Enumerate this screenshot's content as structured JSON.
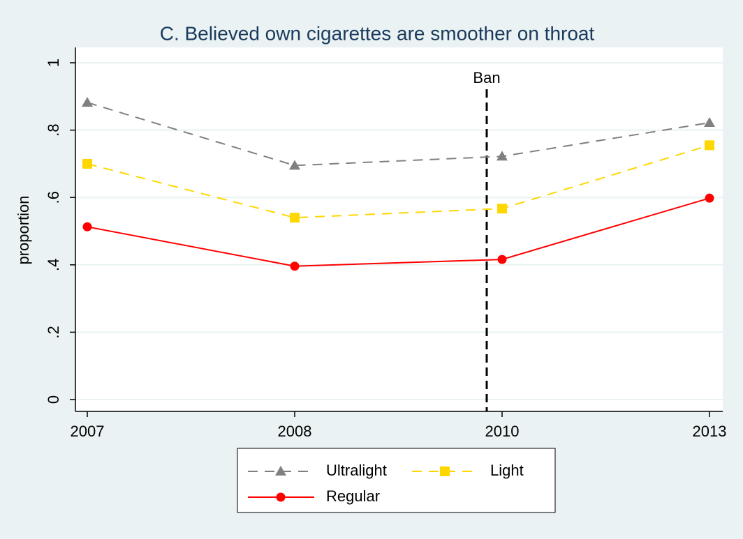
{
  "chart_data": {
    "type": "line",
    "title": "C. Believed own cigarettes are smoother on throat",
    "y_label": "proportion",
    "categories": [
      "2007",
      "2008",
      "2010",
      "2013"
    ],
    "series": [
      {
        "name": "Ultralight",
        "color": "#808080",
        "marker": "triangle",
        "dash": "dashed",
        "values": [
          0.882,
          0.695,
          0.722,
          0.822
        ]
      },
      {
        "name": "Light",
        "color": "#ffd700",
        "marker": "square",
        "dash": "dashed",
        "values": [
          0.7,
          0.54,
          0.567,
          0.755
        ]
      },
      {
        "name": "Regular",
        "color": "#ff0000",
        "marker": "circle",
        "dash": "solid",
        "values": [
          0.513,
          0.396,
          0.416,
          0.598
        ]
      }
    ],
    "ylim": [
      0,
      1
    ],
    "yticks": [
      0,
      {
        "value": 0.2,
        "label": ".2"
      },
      {
        "value": 0.4,
        "label": ".4"
      },
      {
        "value": 0.6,
        "label": ".6"
      },
      {
        "value": 0.8,
        "label": ".8"
      },
      1
    ],
    "grid": true,
    "annotation": "Ban",
    "legend": "bottom"
  }
}
